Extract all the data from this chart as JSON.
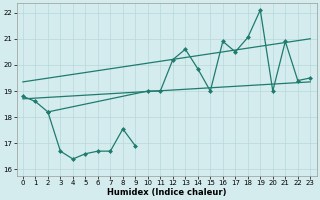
{
  "xlabel": "Humidex (Indice chaleur)",
  "bg_color": "#d4ecee",
  "grid_color": "#b8d8db",
  "line_color": "#1e7b6e",
  "xlim": [
    -0.5,
    23.5
  ],
  "ylim": [
    15.75,
    22.35
  ],
  "yticks": [
    16,
    17,
    18,
    19,
    20,
    21,
    22
  ],
  "xticks": [
    0,
    1,
    2,
    3,
    4,
    5,
    6,
    7,
    8,
    9,
    10,
    11,
    12,
    13,
    14,
    15,
    16,
    17,
    18,
    19,
    20,
    21,
    22,
    23
  ],
  "zigzag_x": [
    2,
    3,
    4,
    5,
    6,
    7,
    8,
    9
  ],
  "zigzag_y": [
    18.2,
    16.7,
    16.4,
    16.6,
    16.7,
    16.7,
    17.55,
    16.9
  ],
  "main_x": [
    0,
    1,
    2,
    10,
    11,
    12,
    13,
    14,
    15,
    16,
    17,
    18,
    19,
    20,
    21,
    22,
    23
  ],
  "main_y": [
    18.8,
    18.6,
    18.2,
    19.0,
    19.0,
    20.2,
    20.6,
    19.85,
    19.0,
    20.9,
    20.5,
    21.05,
    22.1,
    19.0,
    20.9,
    19.4,
    19.5
  ],
  "trend1_x": [
    0,
    23
  ],
  "trend1_y": [
    18.7,
    19.35
  ],
  "trend2_x": [
    0,
    23
  ],
  "trend2_y": [
    19.35,
    21.0
  ]
}
